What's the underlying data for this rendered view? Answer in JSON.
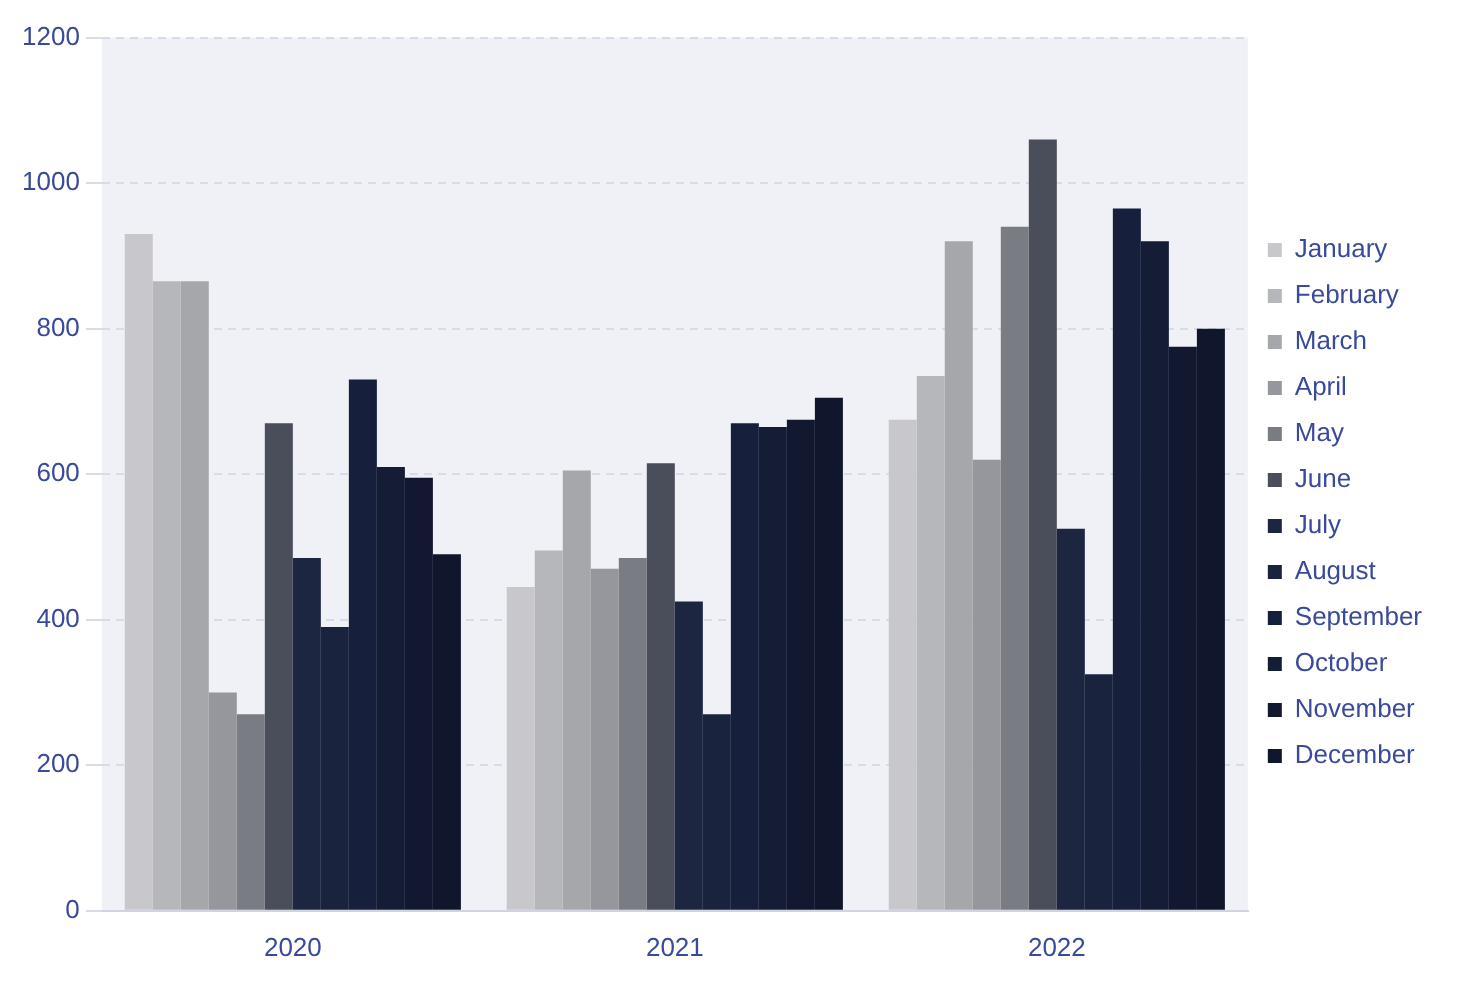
{
  "chart_data": {
    "type": "bar",
    "categories": [
      "2020",
      "2021",
      "2022"
    ],
    "series": [
      {
        "name": "January",
        "color": "#c8c8cc",
        "values": [
          930,
          445,
          675
        ]
      },
      {
        "name": "February",
        "color": "#b6b7bb",
        "values": [
          865,
          495,
          735
        ]
      },
      {
        "name": "March",
        "color": "#a6a7ab",
        "values": [
          865,
          605,
          920
        ]
      },
      {
        "name": "April",
        "color": "#96979c",
        "values": [
          300,
          470,
          620
        ]
      },
      {
        "name": "May",
        "color": "#7a7c84",
        "values": [
          270,
          485,
          940
        ]
      },
      {
        "name": "June",
        "color": "#4a4d5a",
        "values": [
          670,
          615,
          1060
        ]
      },
      {
        "name": "July",
        "color": "#1c2640",
        "values": [
          485,
          425,
          525
        ]
      },
      {
        "name": "August",
        "color": "#19233e",
        "values": [
          390,
          270,
          325
        ]
      },
      {
        "name": "September",
        "color": "#16203c",
        "values": [
          730,
          670,
          965
        ]
      },
      {
        "name": "October",
        "color": "#141c36",
        "values": [
          610,
          665,
          920
        ]
      },
      {
        "name": "November",
        "color": "#121830",
        "values": [
          595,
          675,
          775
        ]
      },
      {
        "name": "December",
        "color": "#10162c",
        "values": [
          490,
          705,
          800
        ]
      }
    ],
    "ylim": [
      0,
      1200
    ],
    "yticks": [
      0,
      200,
      400,
      600,
      800,
      1000,
      1200
    ],
    "grid": "y",
    "legend": "right"
  }
}
